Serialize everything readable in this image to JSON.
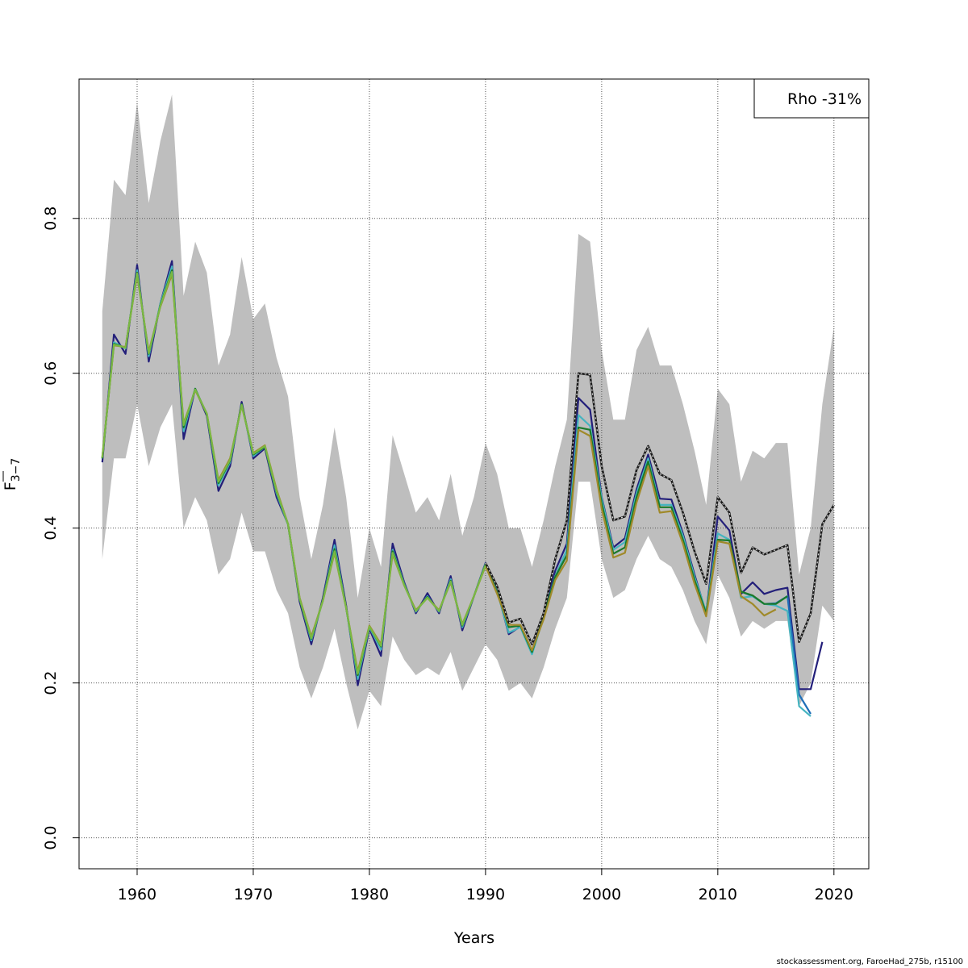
{
  "chart_data": {
    "type": "line",
    "xlabel": "Years",
    "ylabel_main": "F",
    "ylabel_sub": "3−7",
    "xlim": [
      1955,
      2023
    ],
    "ylim": [
      -0.04,
      0.98
    ],
    "xticks": [
      1960,
      1970,
      1980,
      1990,
      2000,
      2010,
      2020
    ],
    "yticks": [
      0.0,
      0.2,
      0.4,
      0.6,
      0.8
    ],
    "ytick_labels": [
      "0.0",
      "0.2",
      "0.4",
      "0.6",
      "0.8"
    ],
    "grid": true,
    "legend": {
      "position": "top-right",
      "text": "Rho -31%"
    },
    "confidence_band": {
      "color": "#bebebe",
      "x": [
        1957,
        1958,
        1959,
        1960,
        1961,
        1962,
        1963,
        1964,
        1965,
        1966,
        1967,
        1968,
        1969,
        1970,
        1971,
        1972,
        1973,
        1974,
        1975,
        1976,
        1977,
        1978,
        1979,
        1980,
        1981,
        1982,
        1983,
        1984,
        1985,
        1986,
        1987,
        1988,
        1989,
        1990,
        1991,
        1992,
        1993,
        1994,
        1995,
        1996,
        1997,
        1998,
        1999,
        2000,
        2001,
        2002,
        2003,
        2004,
        2005,
        2006,
        2007,
        2008,
        2009,
        2010,
        2011,
        2012,
        2013,
        2014,
        2015,
        2016,
        2017,
        2018,
        2019,
        2020
      ],
      "lower": [
        0.36,
        0.49,
        0.49,
        0.56,
        0.48,
        0.53,
        0.56,
        0.4,
        0.44,
        0.41,
        0.34,
        0.36,
        0.42,
        0.37,
        0.37,
        0.32,
        0.29,
        0.22,
        0.18,
        0.22,
        0.27,
        0.2,
        0.14,
        0.19,
        0.17,
        0.26,
        0.23,
        0.21,
        0.22,
        0.21,
        0.24,
        0.19,
        0.22,
        0.25,
        0.23,
        0.19,
        0.2,
        0.18,
        0.22,
        0.27,
        0.31,
        0.46,
        0.46,
        0.36,
        0.31,
        0.32,
        0.36,
        0.39,
        0.36,
        0.35,
        0.32,
        0.28,
        0.25,
        0.34,
        0.31,
        0.26,
        0.28,
        0.27,
        0.28,
        0.28,
        0.17,
        0.2,
        0.3,
        0.28
      ],
      "upper": [
        0.68,
        0.85,
        0.83,
        0.95,
        0.82,
        0.9,
        0.96,
        0.7,
        0.77,
        0.73,
        0.61,
        0.65,
        0.75,
        0.67,
        0.69,
        0.62,
        0.57,
        0.44,
        0.36,
        0.43,
        0.53,
        0.44,
        0.31,
        0.4,
        0.35,
        0.52,
        0.47,
        0.42,
        0.44,
        0.41,
        0.47,
        0.39,
        0.44,
        0.51,
        0.47,
        0.4,
        0.4,
        0.35,
        0.41,
        0.48,
        0.54,
        0.78,
        0.77,
        0.63,
        0.54,
        0.54,
        0.63,
        0.66,
        0.61,
        0.61,
        0.56,
        0.5,
        0.43,
        0.58,
        0.56,
        0.46,
        0.5,
        0.49,
        0.51,
        0.51,
        0.34,
        0.4,
        0.56,
        0.66
      ]
    },
    "series": [
      {
        "color": "#231f7a",
        "dashed": false,
        "x": [
          1957,
          1958,
          1959,
          1960,
          1961,
          1962,
          1963,
          1964,
          1965,
          1966,
          1967,
          1968,
          1969,
          1970,
          1971,
          1972,
          1973,
          1974,
          1975,
          1976,
          1977,
          1978,
          1979,
          1980,
          1981,
          1982,
          1983,
          1984,
          1985,
          1986,
          1987,
          1988,
          1989,
          1990,
          1991,
          1992,
          1993,
          1994,
          1995,
          1996,
          1997,
          1998,
          1999,
          2000,
          2001,
          2002,
          2003,
          2004,
          2005,
          2006,
          2007,
          2008,
          2009,
          2010,
          2011,
          2012,
          2013,
          2014,
          2015,
          2016,
          2017,
          2018,
          2019
        ],
        "values": [
          0.485,
          0.65,
          0.625,
          0.74,
          0.615,
          0.69,
          0.745,
          0.515,
          0.58,
          0.545,
          0.448,
          0.48,
          0.563,
          0.49,
          0.503,
          0.44,
          0.405,
          0.305,
          0.25,
          0.31,
          0.385,
          0.3,
          0.197,
          0.27,
          0.235,
          0.38,
          0.33,
          0.29,
          0.316,
          0.29,
          0.338,
          0.268,
          0.312,
          0.355,
          0.32,
          0.263,
          0.273,
          0.24,
          0.29,
          0.345,
          0.38,
          0.568,
          0.553,
          0.44,
          0.375,
          0.387,
          0.45,
          0.495,
          0.438,
          0.437,
          0.393,
          0.34,
          0.29,
          0.415,
          0.397,
          0.315,
          0.33,
          0.315,
          0.32,
          0.323,
          0.192,
          0.192,
          0.253
        ]
      },
      {
        "color": "#1f6fb8",
        "dashed": false,
        "x": [
          2012,
          2013,
          2014,
          2015,
          2016,
          2017,
          2018
        ],
        "values": [
          0.318,
          0.312,
          0.302,
          0.303,
          0.312,
          0.185,
          0.16
        ]
      },
      {
        "color": "#45b4c0",
        "dashed": false,
        "x": [
          1957,
          1958,
          1959,
          1960,
          1961,
          1962,
          1963,
          1964,
          1965,
          1966,
          1967,
          1968,
          1969,
          1970,
          1971,
          1972,
          1973,
          1974,
          1975,
          1976,
          1977,
          1978,
          1979,
          1980,
          1981,
          1982,
          1983,
          1984,
          1985,
          1986,
          1987,
          1988,
          1989,
          1990,
          1991,
          1992,
          1993,
          1994,
          1995,
          1996,
          1997,
          1998,
          1999,
          2000,
          2001,
          2002,
          2003,
          2004,
          2005,
          2006,
          2007,
          2008,
          2009,
          2010,
          2011,
          2012,
          2013,
          2014,
          2015,
          2016,
          2017,
          2018
        ],
        "values": [
          0.49,
          0.64,
          0.632,
          0.733,
          0.622,
          0.69,
          0.738,
          0.525,
          0.58,
          0.547,
          0.455,
          0.485,
          0.56,
          0.493,
          0.505,
          0.445,
          0.404,
          0.308,
          0.255,
          0.307,
          0.378,
          0.297,
          0.205,
          0.272,
          0.243,
          0.372,
          0.328,
          0.292,
          0.312,
          0.292,
          0.334,
          0.272,
          0.312,
          0.354,
          0.318,
          0.265,
          0.272,
          0.237,
          0.285,
          0.338,
          0.372,
          0.546,
          0.532,
          0.438,
          0.372,
          0.382,
          0.445,
          0.49,
          0.43,
          0.43,
          0.39,
          0.337,
          0.292,
          0.393,
          0.385,
          0.31,
          0.312,
          0.302,
          0.3,
          0.293,
          0.17,
          0.157
        ]
      },
      {
        "color": "#1a7a2a",
        "dashed": false,
        "x": [
          1957,
          1958,
          1959,
          1960,
          1961,
          1962,
          1963,
          1964,
          1965,
          1966,
          1967,
          1968,
          1969,
          1970,
          1971,
          1972,
          1973,
          1974,
          1975,
          1976,
          1977,
          1978,
          1979,
          1980,
          1981,
          1982,
          1983,
          1984,
          1985,
          1986,
          1987,
          1988,
          1989,
          1990,
          1991,
          1992,
          1993,
          1994,
          1995,
          1996,
          1997,
          1998,
          1999,
          2000,
          2001,
          2002,
          2003,
          2004,
          2005,
          2006,
          2007,
          2008,
          2009,
          2010,
          2011,
          2012,
          2013,
          2014,
          2015,
          2016
        ],
        "values": [
          0.49,
          0.638,
          0.633,
          0.73,
          0.625,
          0.688,
          0.733,
          0.53,
          0.58,
          0.547,
          0.458,
          0.487,
          0.56,
          0.495,
          0.505,
          0.447,
          0.405,
          0.308,
          0.257,
          0.307,
          0.373,
          0.297,
          0.21,
          0.273,
          0.247,
          0.37,
          0.327,
          0.293,
          0.311,
          0.293,
          0.332,
          0.274,
          0.312,
          0.353,
          0.317,
          0.272,
          0.274,
          0.24,
          0.285,
          0.337,
          0.365,
          0.53,
          0.527,
          0.432,
          0.367,
          0.375,
          0.44,
          0.486,
          0.427,
          0.427,
          0.385,
          0.333,
          0.29,
          0.385,
          0.384,
          0.318,
          0.313,
          0.302,
          0.302,
          0.312
        ]
      },
      {
        "color": "#a08a2a",
        "dashed": false,
        "x": [
          1957,
          1958,
          1959,
          1960,
          1961,
          1962,
          1963,
          1964,
          1965,
          1966,
          1967,
          1968,
          1969,
          1970,
          1971,
          1972,
          1973,
          1974,
          1975,
          1976,
          1977,
          1978,
          1979,
          1980,
          1981,
          1982,
          1983,
          1984,
          1985,
          1986,
          1987,
          1988,
          1989,
          1990,
          1991,
          1992,
          1993,
          1994,
          1995,
          1996,
          1997,
          1998,
          1999,
          2000,
          2001,
          2002,
          2003,
          2004,
          2005,
          2006,
          2007,
          2008,
          2009,
          2010,
          2011,
          2012,
          2013,
          2014,
          2015
        ],
        "values": [
          0.492,
          0.636,
          0.634,
          0.727,
          0.628,
          0.686,
          0.728,
          0.535,
          0.578,
          0.548,
          0.462,
          0.49,
          0.558,
          0.497,
          0.507,
          0.45,
          0.405,
          0.31,
          0.26,
          0.306,
          0.368,
          0.297,
          0.215,
          0.274,
          0.25,
          0.366,
          0.326,
          0.294,
          0.31,
          0.294,
          0.33,
          0.276,
          0.312,
          0.351,
          0.315,
          0.275,
          0.275,
          0.242,
          0.282,
          0.333,
          0.358,
          0.527,
          0.519,
          0.425,
          0.362,
          0.368,
          0.433,
          0.48,
          0.42,
          0.422,
          0.38,
          0.328,
          0.286,
          0.383,
          0.38,
          0.312,
          0.302,
          0.287,
          0.295
        ]
      },
      {
        "color": "#7ab843",
        "dashed": false,
        "x": [
          1957,
          1958,
          1959,
          1960,
          1961,
          1962,
          1963,
          1964,
          1965,
          1966,
          1967,
          1968,
          1969,
          1970,
          1971,
          1972,
          1973,
          1974,
          1975,
          1976,
          1977,
          1978,
          1979,
          1980,
          1981,
          1982,
          1983,
          1984,
          1985,
          1986,
          1987,
          1988,
          1989,
          1990
        ],
        "values": [
          0.491,
          0.637,
          0.633,
          0.729,
          0.626,
          0.687,
          0.731,
          0.533,
          0.579,
          0.548,
          0.46,
          0.488,
          0.559,
          0.496,
          0.506,
          0.448,
          0.405,
          0.309,
          0.258,
          0.306,
          0.37,
          0.297,
          0.212,
          0.273,
          0.248,
          0.368,
          0.326,
          0.293,
          0.31,
          0.293,
          0.331,
          0.275,
          0.312,
          0.352
        ]
      },
      {
        "color": "#1a1a1a",
        "dashed": true,
        "x": [
          1990,
          1991,
          1992,
          1993,
          1994,
          1995,
          1996,
          1997,
          1998,
          1999,
          2000,
          2001,
          2002,
          2003,
          2004,
          2005,
          2006,
          2007,
          2008,
          2009,
          2010,
          2011,
          2012,
          2013,
          2014,
          2015,
          2016,
          2017,
          2018,
          2019,
          2020
        ],
        "values": [
          0.355,
          0.325,
          0.278,
          0.283,
          0.25,
          0.29,
          0.36,
          0.41,
          0.6,
          0.598,
          0.48,
          0.41,
          0.415,
          0.475,
          0.506,
          0.47,
          0.462,
          0.42,
          0.37,
          0.328,
          0.44,
          0.42,
          0.342,
          0.375,
          0.366,
          0.372,
          0.378,
          0.253,
          0.29,
          0.405,
          0.43
        ]
      }
    ]
  },
  "footer": "stockassessment.org, FaroeHad_275b, r15100"
}
